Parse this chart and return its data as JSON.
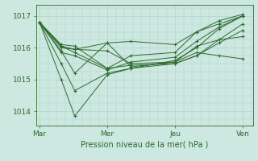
{
  "title": "",
  "xlabel": "Pression niveau de la mer( hPa )",
  "ylabel": "",
  "bg_color": "#cce8e0",
  "line_color": "#2d6a2d",
  "grid_color": "#b0d4c8",
  "ylim": [
    1013.55,
    1017.35
  ],
  "yticks": [
    1014,
    1015,
    1016,
    1017
  ],
  "xtick_labels": [
    "Mar",
    "Mer",
    "Jeu",
    "Ven"
  ],
  "xtick_positions": [
    0.0,
    1.0,
    2.0,
    3.0
  ],
  "xlim": [
    -0.05,
    3.15
  ],
  "series": [
    [
      1016.8,
      1015.9,
      1015.2,
      1016.15,
      1016.2,
      1016.1,
      1016.5,
      1016.85,
      1017.05
    ],
    [
      1016.8,
      1015.0,
      1013.85,
      1015.15,
      1015.35,
      1015.6,
      1016.0,
      1016.6,
      1017.0
    ],
    [
      1016.8,
      1015.85,
      1015.75,
      1015.3,
      1015.55,
      1015.7,
      1016.2,
      1016.65,
      1017.0
    ],
    [
      1016.8,
      1016.05,
      1015.85,
      1015.35,
      1015.75,
      1015.85,
      1016.5,
      1016.75,
      1017.0
    ],
    [
      1016.8,
      1016.0,
      1015.95,
      1016.15,
      1015.4,
      1015.55,
      1015.85,
      1015.75,
      1015.65
    ],
    [
      1016.8,
      1016.05,
      1015.95,
      1015.9,
      1015.5,
      1015.55,
      1016.05,
      1016.25,
      1016.35
    ],
    [
      1016.8,
      1015.5,
      1014.65,
      1015.2,
      1015.35,
      1015.5,
      1015.75,
      1016.25,
      1016.75
    ],
    [
      1016.8,
      1016.1,
      1016.05,
      1015.35,
      1015.45,
      1015.5,
      1015.75,
      1016.15,
      1016.55
    ]
  ],
  "x_positions": [
    0.0,
    0.32,
    0.52,
    1.0,
    1.35,
    2.0,
    2.32,
    2.65,
    3.0
  ]
}
